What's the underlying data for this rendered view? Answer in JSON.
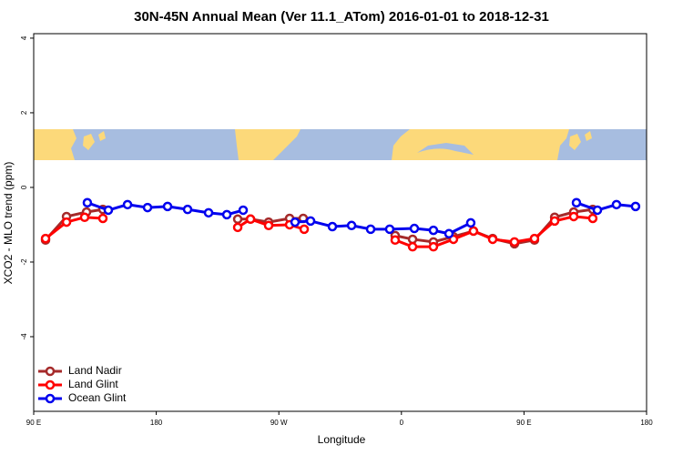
{
  "chart_data": {
    "type": "line",
    "title": "30N-45N Annual Mean (Ver 11.1_ATom)   2016-01-01 to 2018-12-31",
    "x_label": "Longitude",
    "y_label": "XCO2 - MLO trend (ppm)",
    "xlim": [
      90,
      540
    ],
    "xticks": [
      {
        "value": 90,
        "label": "90 E"
      },
      180,
      {
        "value": 270,
        "label": "90 W"
      },
      {
        "value": 360,
        "label": "0"
      },
      {
        "value": 450,
        "label": "90 E"
      },
      {
        "value": 540,
        "label": "180"
      }
    ],
    "ylim": [
      -6,
      4.12
    ],
    "yticks": [
      -4,
      -2,
      0,
      2,
      4
    ],
    "legend": "bottom-left",
    "series": [
      {
        "name": "Land Nadir",
        "color": "#a52a2a",
        "x": [
          98.7,
          114.1,
          128.8,
          140.8,
          null,
          239.8,
          249.2,
          262.5,
          277.9,
          287.9,
          null,
          355.4,
          368.2,
          383.5,
          398.2,
          412.9,
          427,
          443,
          457.7,
          472.5,
          486.5,
          500.5
        ],
        "values": [
          -1.41,
          -0.78,
          -0.66,
          -0.59,
          null,
          -0.85,
          -0.85,
          -0.93,
          -0.83,
          -0.83,
          null,
          -1.29,
          -1.39,
          -1.46,
          -1.32,
          -1.17,
          -1.37,
          -1.51,
          -1.41,
          -0.8,
          -0.66,
          -0.59
        ]
      },
      {
        "name": "Land Glint",
        "color": "#ff0000",
        "x": [
          98.7,
          114.1,
          127.4,
          140.8,
          null,
          239.8,
          249.2,
          262.5,
          277.9,
          288.6,
          null,
          355.4,
          368.2,
          383.5,
          398.2,
          412.9,
          427,
          443,
          457.7,
          472.5,
          486.5,
          500.5
        ],
        "values": [
          -1.37,
          -0.93,
          -0.8,
          -0.83,
          null,
          -1.07,
          -0.85,
          -1.02,
          -1,
          -1.12,
          null,
          -1.41,
          -1.59,
          -1.59,
          -1.39,
          -1.17,
          -1.39,
          -1.46,
          -1.37,
          -0.9,
          -0.78,
          -0.83
        ]
      },
      {
        "name": "Ocean Glint",
        "color": "#0000ee",
        "x": [
          129.4,
          144.8,
          158.9,
          173.6,
          188.3,
          203,
          218.4,
          231.8,
          243.8,
          null,
          281.9,
          293.3,
          309.3,
          323.4,
          337.4,
          351.4,
          369.5,
          383.5,
          394.9,
          410.9,
          null,
          488.5,
          503.9,
          517.9,
          531.9
        ],
        "values": [
          -0.41,
          -0.61,
          -0.46,
          -0.54,
          -0.51,
          -0.59,
          -0.68,
          -0.73,
          -0.61,
          null,
          -0.93,
          -0.9,
          -1.05,
          -1.02,
          -1.12,
          -1.12,
          -1.1,
          -1.15,
          -1.24,
          -0.95,
          null,
          -0.41,
          -0.61,
          -0.46,
          -0.51
        ]
      }
    ]
  }
}
